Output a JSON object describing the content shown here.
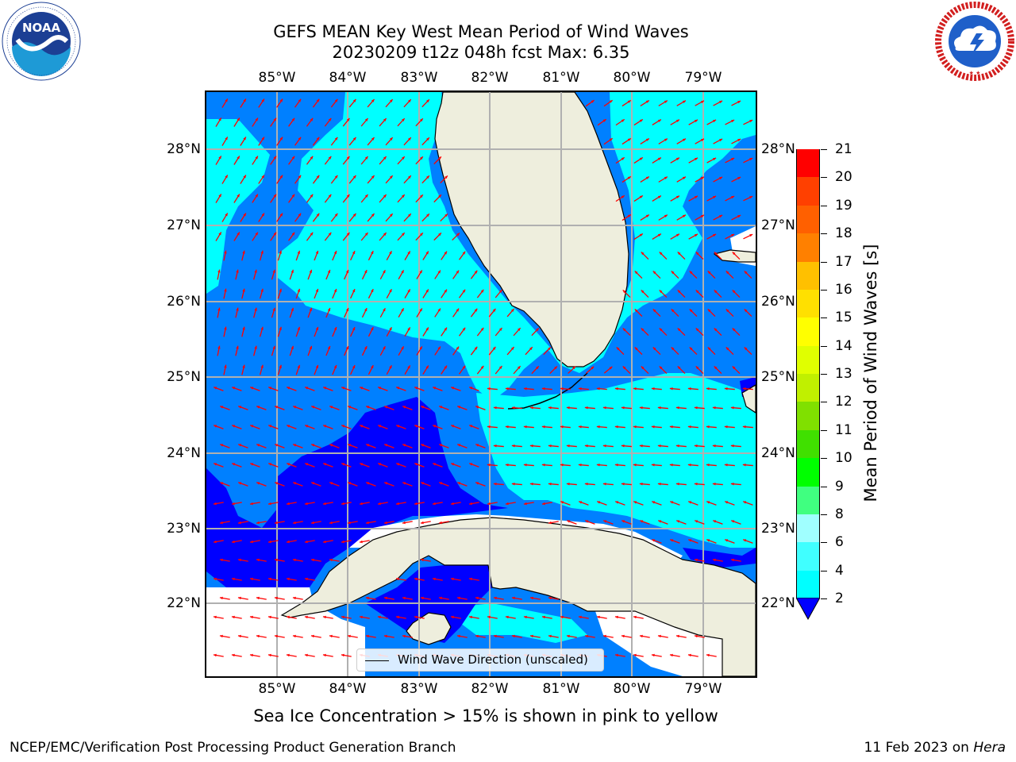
{
  "header": {
    "title_line1": "GEFS MEAN Key West Mean Period of Wind Waves",
    "title_line2": "20230209 t12z 048h fcst   Max: 6.35"
  },
  "logos": {
    "noaa": {
      "text": "NOAA",
      "ring_text": "NATIONAL OCEANIC AND ATMOSPHERIC ADMINISTRATION • U.S. DEPARTMENT OF COMMERCE",
      "icon": "noaa-logo"
    },
    "nws": {
      "ring_text": "NATIONAL WEATHER SERVICE",
      "icon": "nws-logo"
    }
  },
  "map": {
    "lon_labels": [
      "85°W",
      "84°W",
      "83°W",
      "82°W",
      "81°W",
      "80°W",
      "79°W"
    ],
    "lat_labels": [
      "28°N",
      "27°N",
      "26°N",
      "25°N",
      "24°N",
      "23°N",
      "22°N"
    ],
    "extent": {
      "lon_min": -86.0,
      "lon_max": -78.3,
      "lat_min": 21.0,
      "lat_max": 28.7
    },
    "colors": {
      "land": "#eeeedd",
      "band_2_4": "#0080ff",
      "band_4_6": "#00ffff",
      "band_below_2": "#0000ff",
      "arrows": "#ff0000",
      "grid": "#b0b0b0"
    },
    "legend_label": "Wind Wave Direction (unscaled)"
  },
  "colorbar": {
    "label": "Mean Period of Wind Waves [s]",
    "ticks": [
      "2",
      "4",
      "6",
      "8",
      "9",
      "10",
      "11",
      "12",
      "13",
      "14",
      "15",
      "16",
      "17",
      "18",
      "19",
      "20",
      "21"
    ],
    "colors": [
      "#0080ff",
      "#00ffff",
      "#40ffff",
      "#a0ffff",
      "#40ff80",
      "#00ff00",
      "#40e000",
      "#80e000",
      "#c0f000",
      "#e0ff00",
      "#ffff00",
      "#ffe000",
      "#ffc000",
      "#ff8000",
      "#ff6000",
      "#ff4000",
      "#ff0000"
    ],
    "extend_color": "#0000ff"
  },
  "footer": {
    "subtitle": "Sea Ice Concentration > 15% is shown in pink to yellow",
    "left": "NCEP/EMC/Verification Post Processing Product Generation Branch",
    "right_prefix": "11 Feb 2023 on ",
    "right_italic": "Hera"
  }
}
